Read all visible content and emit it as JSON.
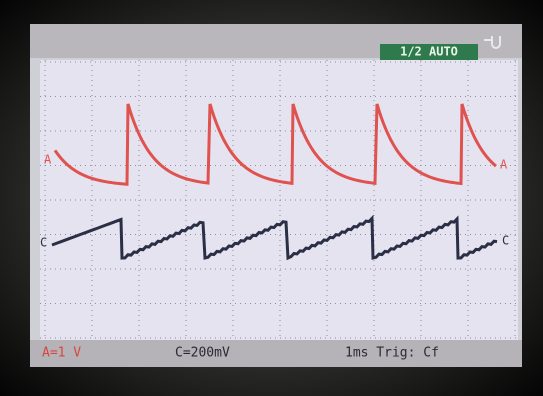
{
  "status": {
    "mode": "1/2 AUTO"
  },
  "traces": {
    "a_left": "A",
    "a_right": "A",
    "c_left": "C",
    "c_right": "C"
  },
  "footer": {
    "channel_a": "A=1 V",
    "channel_c": "C=200mV",
    "timebase": "1ms Trig: Cf"
  }
}
